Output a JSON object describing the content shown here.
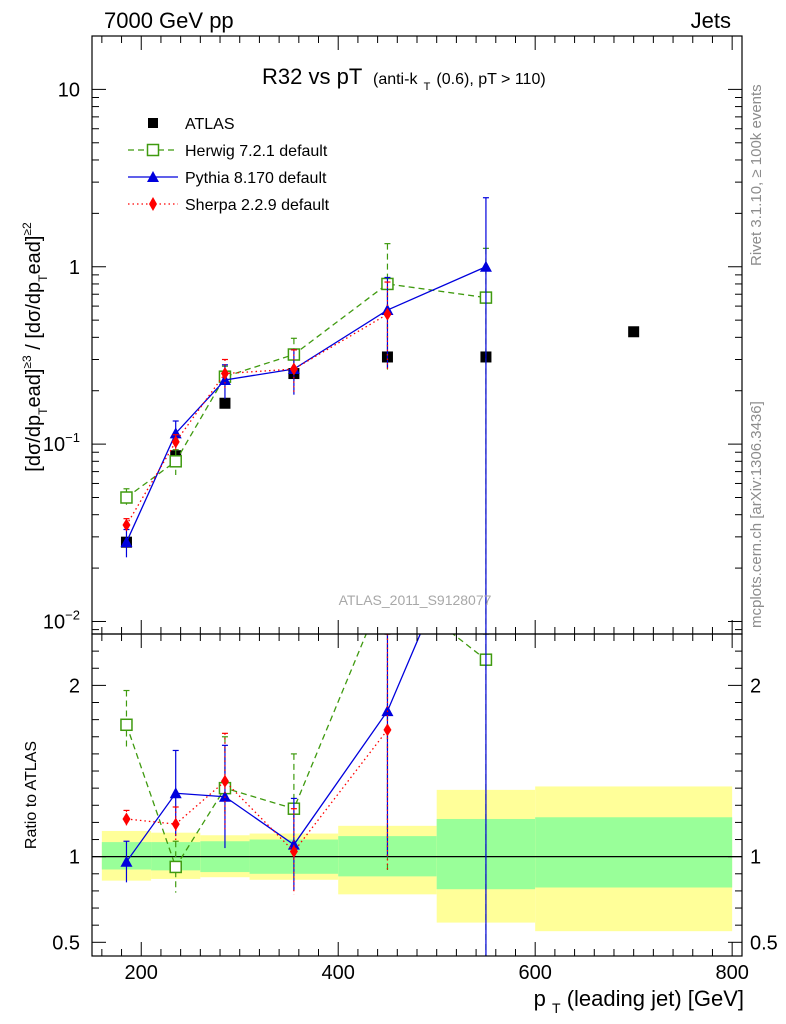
{
  "header": {
    "left": "7000 GeV pp",
    "right": "Jets"
  },
  "side_text": {
    "rivet": "Rivet 3.1.10, ≥ 100k events",
    "mcplots": "mcplots.cern.ch [arXiv:1306.3436]"
  },
  "analysis_label": "ATLAS_2011_S9128077",
  "colors": {
    "atlas": "#000000",
    "herwig": "#3f9a0f",
    "pythia": "#0000dd",
    "sherpa": "#ff0000",
    "band_inner": "#99ff99",
    "band_outer": "#ffff99",
    "side_text": "#8c8c8c"
  },
  "chart_data": {
    "type": "line",
    "title_main": "R32 vs pT",
    "title_sub": "(anti-k",
    "title_sub_index": "T",
    "title_sub_tail": "(0.6), pT > 110)",
    "ylabel": "[dσ/dpᵀead]≥³ / [dσ/dpᵀead]≥²",
    "xlabel": "p",
    "xlabel_index": "T",
    "xlabel_tail": "(leading jet) [GeV]",
    "ratio_ylabel": "Ratio to ATLAS",
    "xlim": [
      150,
      810
    ],
    "ylim": [
      0.0085,
      20
    ],
    "yscale": "log",
    "ratio_ylim": [
      0.42,
      2.3
    ],
    "x_ticks": [
      200,
      400,
      600,
      800
    ],
    "y_ticks": [
      {
        "value": 10,
        "label": "10"
      },
      {
        "value": 1,
        "label": "1"
      },
      {
        "value": 0.1,
        "label": "10",
        "exp": "−1"
      },
      {
        "value": 0.01,
        "label": "10",
        "exp": "−2"
      }
    ],
    "ratio_ticks": [
      {
        "value": 0.5,
        "label": "0.5"
      },
      {
        "value": 1,
        "label": "1"
      },
      {
        "value": 2,
        "label": "2"
      }
    ],
    "legend": [
      "ATLAS",
      "Herwig 7.2.1 default",
      "Pythia 8.170 default",
      "Sherpa 2.2.9 default"
    ],
    "atlas": {
      "name": "ATLAS",
      "x": [
        185,
        235,
        285,
        355,
        450,
        550,
        700
      ],
      "y": [
        0.028,
        0.086,
        0.17,
        0.25,
        0.31,
        0.31,
        0.43
      ]
    },
    "bands": [
      {
        "x0": 160,
        "x1": 210,
        "inner": [
          0.925,
          1.085
        ],
        "outer": [
          0.86,
          1.15
        ]
      },
      {
        "x0": 210,
        "x1": 260,
        "inner": [
          0.92,
          1.085
        ],
        "outer": [
          0.87,
          1.14
        ]
      },
      {
        "x0": 260,
        "x1": 310,
        "inner": [
          0.91,
          1.09
        ],
        "outer": [
          0.88,
          1.125
        ]
      },
      {
        "x0": 310,
        "x1": 400,
        "inner": [
          0.9,
          1.1
        ],
        "outer": [
          0.865,
          1.135
        ]
      },
      {
        "x0": 400,
        "x1": 500,
        "inner": [
          0.885,
          1.12
        ],
        "outer": [
          0.78,
          1.18
        ]
      },
      {
        "x0": 500,
        "x1": 600,
        "inner": [
          0.81,
          1.22
        ],
        "outer": [
          0.615,
          1.39
        ]
      },
      {
        "x0": 600,
        "x1": 800,
        "inner": [
          0.82,
          1.23
        ],
        "outer": [
          0.565,
          1.41
        ]
      }
    ],
    "series": [
      {
        "name": "Herwig 7.2.1 default",
        "key": "herwig",
        "marker": "open-square",
        "dash": "6,4",
        "x": [
          185,
          235,
          285,
          355,
          450,
          550
        ],
        "y": [
          0.05,
          0.08,
          0.24,
          0.32,
          0.8,
          0.67
        ],
        "err_lo": [
          0.005,
          0.013,
          0.03,
          0.075,
          0.55,
          0.67
        ],
        "err_hi": [
          0.006,
          0.013,
          0.035,
          0.075,
          0.55,
          0.6
        ],
        "ratio": [
          1.77,
          0.94,
          1.4,
          1.28,
          2.6,
          2.15
        ],
        "ratio_lo": [
          0.15,
          0.15,
          0.15,
          0.32,
          1.7,
          2.15
        ],
        "ratio_hi": [
          0.2,
          0.15,
          0.3,
          0.32,
          1.7,
          1.5
        ]
      },
      {
        "name": "Pythia 8.170 default",
        "key": "pythia",
        "marker": "filled-triangle",
        "dash": "",
        "x": [
          185,
          235,
          285,
          355,
          450,
          550
        ],
        "y": [
          0.028,
          0.115,
          0.23,
          0.265,
          0.57,
          1.0
        ],
        "err_lo": [
          0.005,
          0.02,
          0.05,
          0.075,
          0.3,
          1.0
        ],
        "err_hi": [
          0.005,
          0.02,
          0.05,
          0.075,
          0.3,
          1.45
        ],
        "ratio": [
          0.97,
          1.37,
          1.35,
          1.07,
          1.85,
          3.2
        ],
        "ratio_lo": [
          0.12,
          0.25,
          0.3,
          0.27,
          0.85,
          3.2
        ],
        "ratio_hi": [
          0.12,
          0.25,
          0.3,
          0.27,
          0.85,
          4.7
        ]
      },
      {
        "name": "Sherpa 2.2.9 default",
        "key": "sherpa",
        "marker": "filled-diamond",
        "dash": "1.5,3",
        "x": [
          185,
          235,
          285,
          355,
          450
        ],
        "y": [
          0.035,
          0.103,
          0.25,
          0.265,
          0.54
        ],
        "err_lo": [
          0.003,
          0.01,
          0.05,
          0.075,
          0.28
        ],
        "err_hi": [
          0.003,
          0.01,
          0.05,
          0.075,
          0.28
        ],
        "ratio": [
          1.22,
          1.19,
          1.44,
          1.03,
          1.74
        ],
        "ratio_lo": [
          0.05,
          0.1,
          0.28,
          0.25,
          0.82
        ],
        "ratio_hi": [
          0.05,
          0.1,
          0.28,
          0.25,
          0.82
        ]
      }
    ]
  }
}
